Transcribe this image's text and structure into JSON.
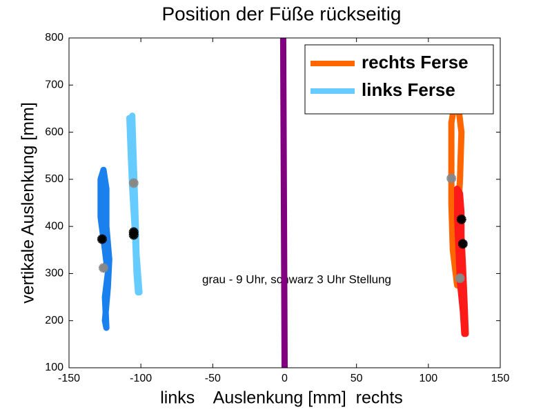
{
  "chart_data": {
    "type": "line",
    "title": "Position der Füße rückseitig",
    "xlabel": "links    Auslenkung [mm]  rechts",
    "ylabel": "vertikale Auslenkung [mm]",
    "annotation": "grau - 9 Uhr, schwarz 3 Uhr Stellung",
    "xlim": [
      -150,
      150
    ],
    "ylim": [
      100,
      800
    ],
    "xticks": [
      -150,
      -100,
      -50,
      0,
      50,
      100,
      150
    ],
    "yticks": [
      100,
      200,
      300,
      400,
      500,
      600,
      700,
      800
    ],
    "grid": false,
    "legend": "upper right",
    "series": [
      {
        "name": "rechts Ferse",
        "color": "#ff6600",
        "x": [
          120,
          117,
          116,
          116,
          116,
          118,
          121,
          123,
          122,
          120,
          119,
          120
        ],
        "values": [
          275,
          350,
          450,
          550,
          620,
          655,
          650,
          600,
          500,
          400,
          320,
          275
        ]
      },
      {
        "name": "links Ferse",
        "color": "#66ccff",
        "x": [
          -108,
          -107,
          -106,
          -104,
          -103,
          -102,
          -101,
          -103,
          -104,
          -105,
          -106
        ],
        "values": [
          630,
          550,
          480,
          380,
          300,
          260,
          260,
          340,
          450,
          540,
          635
        ]
      },
      {
        "color": "#1a80ee",
        "x": [
          -124,
          -125,
          -123,
          -125,
          -128,
          -128,
          -126,
          -124,
          -124,
          -122,
          -123,
          -125,
          -124
        ],
        "values": [
          185,
          250,
          300,
          350,
          420,
          500,
          520,
          480,
          400,
          330,
          270,
          200,
          185
        ]
      },
      {
        "color": "#ff1a1a",
        "x": [
          126,
          125,
          124,
          123,
          123,
          122,
          120,
          120,
          121,
          122,
          124,
          125
        ],
        "values": [
          172,
          250,
          320,
          380,
          430,
          470,
          480,
          420,
          350,
          280,
          220,
          172
        ]
      },
      {
        "color": "#800080",
        "x": [
          -1,
          0
        ],
        "values": [
          800,
          100
        ]
      },
      {
        "color": "#888888",
        "marker": "star",
        "line": false,
        "x": [
          -105,
          -126,
          116,
          122
        ],
        "values": [
          492,
          312,
          502,
          290
        ]
      },
      {
        "color": "#000000",
        "marker": "star",
        "line": false,
        "x": [
          -127,
          -105,
          -105,
          123,
          124
        ],
        "values": [
          373,
          388,
          382,
          415,
          363
        ]
      }
    ]
  }
}
